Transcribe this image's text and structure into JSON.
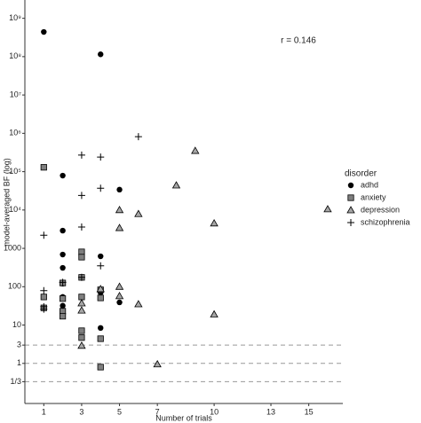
{
  "chart_data": {
    "type": "scatter",
    "x_label": "Number of trials",
    "y_label": "model-averaged BF (log)",
    "annotation": "r =  0.146",
    "legend_title": "disorder",
    "legend": "right",
    "log_y": true,
    "xlim": [
      0,
      16.8
    ],
    "ylim": [
      0.09,
      3000000000
    ],
    "xticks": [
      1,
      3,
      5,
      7,
      10,
      13,
      15
    ],
    "yticks": [
      {
        "value": 0.3333,
        "label": "1/3"
      },
      1,
      3,
      10,
      100,
      1000,
      {
        "value": 10000,
        "label": "10⁴"
      },
      {
        "value": 100000,
        "label": "10⁵"
      },
      {
        "value": 1000000,
        "label": "10⁶"
      },
      {
        "value": 10000000,
        "label": "10⁷"
      },
      {
        "value": 100000000,
        "label": "10⁸"
      },
      {
        "value": 1000000000,
        "label": "10⁹"
      }
    ],
    "reference_lines": [
      3,
      1,
      0.3333
    ],
    "series": [
      {
        "name": "adhd",
        "marker": "circle",
        "color": "#000000",
        "x": [
          1,
          4,
          2,
          2,
          2,
          2,
          2,
          2,
          2,
          4,
          4,
          4,
          5,
          5
        ],
        "values": [
          440000000,
          115000000,
          79000,
          2900,
          690,
          310,
          120,
          54,
          32,
          620,
          70,
          8.4,
          34000,
          39
        ]
      },
      {
        "name": "anxiety",
        "marker": "square",
        "color": "#7f7f7f",
        "x": [
          1,
          1,
          1,
          2,
          2,
          2,
          2,
          3,
          3,
          3,
          3,
          3,
          3,
          4,
          4,
          4,
          4
        ],
        "values": [
          130000,
          54,
          28,
          125,
          49,
          23,
          17,
          810,
          590,
          175,
          54,
          7.1,
          4.7,
          83,
          51,
          4.4,
          0.8
        ]
      },
      {
        "name": "depression",
        "marker": "triangle",
        "color": "#a6a6a6",
        "x": [
          3,
          3,
          3,
          4,
          5,
          5,
          5,
          5,
          6,
          6,
          7,
          8,
          9,
          10,
          10,
          16
        ],
        "values": [
          2.9,
          37,
          24,
          87,
          10000,
          3400,
          100,
          57,
          7900,
          35,
          0.95,
          44000,
          350000,
          4500,
          19,
          10500
        ]
      },
      {
        "name": "schizophrenia",
        "marker": "plus",
        "color": "#000000",
        "x": [
          1,
          1,
          1,
          1,
          2,
          3,
          3,
          3,
          3,
          4,
          4,
          4,
          6
        ],
        "values": [
          2200,
          79,
          30,
          26,
          130,
          270000,
          24000,
          3600,
          175,
          240000,
          37000,
          350,
          820000
        ]
      }
    ]
  }
}
